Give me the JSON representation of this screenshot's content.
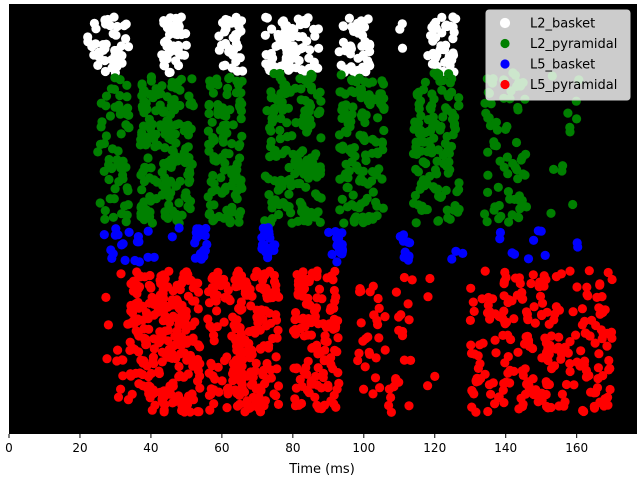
{
  "chart_data": {
    "type": "scatter",
    "title": "",
    "xlabel": "Time (ms)",
    "ylabel": "",
    "xlim": [
      0,
      177
    ],
    "ylim": [
      0,
      1
    ],
    "grid": false,
    "background": "#000000",
    "legend_position": "top-right",
    "xticks": [
      0,
      20,
      40,
      60,
      80,
      100,
      120,
      140,
      160
    ],
    "xtick_labels": [
      "0",
      "20",
      "40",
      "60",
      "80",
      "100",
      "120",
      "140",
      "160"
    ],
    "series": [
      {
        "name": "L2_basket",
        "color": "#ffffff",
        "band": [
          0.84,
          0.97
        ],
        "bursts": [
          {
            "t0": 22,
            "t1": 34,
            "n": 45
          },
          {
            "t0": 43,
            "t1": 50,
            "n": 45
          },
          {
            "t0": 59,
            "t1": 66,
            "n": 40
          },
          {
            "t0": 72,
            "t1": 80,
            "n": 40
          },
          {
            "t0": 78,
            "t1": 88,
            "n": 40
          },
          {
            "t0": 93,
            "t1": 102,
            "n": 45
          },
          {
            "t0": 110,
            "t1": 112,
            "n": 3
          },
          {
            "t0": 118,
            "t1": 126,
            "n": 40
          }
        ]
      },
      {
        "name": "L2_pyramidal",
        "color": "#008000",
        "band": [
          0.49,
          0.84
        ],
        "bursts": [
          {
            "t0": 25,
            "t1": 34,
            "n": 60
          },
          {
            "t0": 37,
            "t1": 52,
            "n": 170
          },
          {
            "t0": 56,
            "t1": 66,
            "n": 110
          },
          {
            "t0": 72,
            "t1": 88,
            "n": 170
          },
          {
            "t0": 93,
            "t1": 106,
            "n": 130
          },
          {
            "t0": 114,
            "t1": 127,
            "n": 130
          },
          {
            "t0": 134,
            "t1": 146,
            "n": 70
          },
          {
            "t0": 152,
            "t1": 161,
            "n": 12
          }
        ]
      },
      {
        "name": "L5_basket",
        "color": "#0000ff",
        "band": [
          0.4,
          0.48
        ],
        "bursts": [
          {
            "t0": 26,
            "t1": 37,
            "n": 16
          },
          {
            "t0": 39,
            "t1": 41,
            "n": 3
          },
          {
            "t0": 46,
            "t1": 48,
            "n": 2
          },
          {
            "t0": 52,
            "t1": 56,
            "n": 20
          },
          {
            "t0": 71,
            "t1": 75,
            "n": 22
          },
          {
            "t0": 90,
            "t1": 94,
            "n": 20
          },
          {
            "t0": 110,
            "t1": 113,
            "n": 12
          },
          {
            "t0": 124,
            "t1": 130,
            "n": 3
          },
          {
            "t0": 137,
            "t1": 152,
            "n": 9
          },
          {
            "t0": 159,
            "t1": 161,
            "n": 2
          }
        ]
      },
      {
        "name": "L5_pyramidal",
        "color": "#ff0000",
        "band": [
          0.05,
          0.38
        ],
        "bursts": [
          {
            "t0": 27,
            "t1": 37,
            "n": 20
          },
          {
            "t0": 34,
            "t1": 44,
            "n": 110
          },
          {
            "t0": 43,
            "t1": 54,
            "n": 130
          },
          {
            "t0": 56,
            "t1": 66,
            "n": 70
          },
          {
            "t0": 63,
            "t1": 76,
            "n": 150
          },
          {
            "t0": 80,
            "t1": 93,
            "n": 120
          },
          {
            "t0": 98,
            "t1": 114,
            "n": 50
          },
          {
            "t0": 117,
            "t1": 125,
            "n": 4
          },
          {
            "t0": 130,
            "t1": 146,
            "n": 90
          },
          {
            "t0": 146,
            "t1": 170,
            "n": 140
          }
        ]
      }
    ]
  }
}
